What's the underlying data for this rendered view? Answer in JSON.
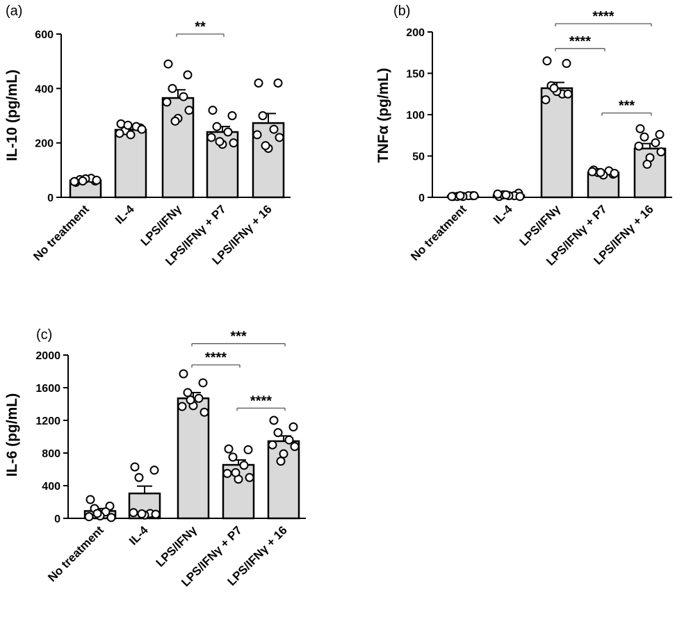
{
  "colors": {
    "bar_fill": "#d9d9d9",
    "bar_stroke": "#000000",
    "point_fill": "#ffffff",
    "point_stroke": "#000000",
    "bracket": "#555555"
  },
  "chart_data": [
    {
      "type": "bar",
      "panel_label": "(a)",
      "ylabel": "IL-10 (pg/mL)",
      "ylim": [
        0,
        600
      ],
      "yticks": [
        0,
        200,
        400,
        600
      ],
      "categories": [
        "No treatment",
        "IL-4",
        "LPS/IFNγ",
        "LPS/IFNγ + P7",
        "LPS/IFNγ + 16"
      ],
      "values": [
        62,
        248,
        365,
        240,
        273
      ],
      "sem": [
        5,
        12,
        30,
        20,
        35
      ],
      "points": [
        [
          55,
          60,
          65,
          70,
          58,
          63,
          68,
          60
        ],
        [
          270,
          255,
          245,
          260,
          235,
          250,
          230,
          265
        ],
        [
          490,
          450,
          400,
          370,
          350,
          320,
          290,
          280
        ],
        [
          320,
          300,
          260,
          240,
          220,
          200,
          195,
          205
        ],
        [
          420,
          420,
          300,
          250,
          230,
          220,
          180,
          190
        ]
      ],
      "significance": [
        {
          "from": 2,
          "to": 3,
          "label": "**",
          "y": 600
        }
      ]
    },
    {
      "type": "bar",
      "panel_label": "(b)",
      "ylabel": "TNFα (pg/mL)",
      "ylim": [
        0,
        200
      ],
      "yticks": [
        0,
        50,
        100,
        150,
        200
      ],
      "categories": [
        "No treatment",
        "IL-4",
        "LPS/IFNγ",
        "LPS/IFNγ + P7",
        "LPS/IFNγ + 16"
      ],
      "values": [
        1.5,
        2.5,
        132,
        30,
        59
      ],
      "sem": [
        0.5,
        1,
        7,
        2,
        6
      ],
      "points": [
        [
          1,
          2,
          1,
          2,
          1,
          2,
          1,
          2
        ],
        [
          1,
          5,
          3,
          2,
          4,
          1,
          2,
          3
        ],
        [
          165,
          162,
          135,
          125,
          118,
          125,
          128,
          132
        ],
        [
          33,
          28,
          30,
          32,
          31,
          29,
          27,
          30
        ],
        [
          83,
          76,
          73,
          66,
          62,
          55,
          48,
          40
        ]
      ],
      "significance": [
        {
          "from": 2,
          "to": 4,
          "label": "****",
          "y": 210
        },
        {
          "from": 2,
          "to": 3,
          "label": "****",
          "y": 180
        },
        {
          "from": 3,
          "to": 4,
          "label": "***",
          "y": 102
        }
      ]
    },
    {
      "type": "bar",
      "panel_label": "(c)",
      "ylabel": "IL-6 (pg/mL)",
      "ylim": [
        0,
        2000
      ],
      "yticks": [
        0,
        400,
        800,
        1200,
        1600,
        2000
      ],
      "categories": [
        "No treatment",
        "IL-4",
        "LPS/IFNγ",
        "LPS/IFNγ + P7",
        "LPS/IFNγ + 16"
      ],
      "values": [
        90,
        305,
        1470,
        655,
        945
      ],
      "sem": [
        30,
        90,
        70,
        60,
        65
      ],
      "points": [
        [
          230,
          150,
          120,
          80,
          20,
          10,
          30,
          60
        ],
        [
          630,
          590,
          500,
          60,
          70,
          50,
          40,
          55
        ],
        [
          1770,
          1660,
          1540,
          1470,
          1370,
          1300,
          1380,
          1450
        ],
        [
          850,
          840,
          750,
          650,
          550,
          500,
          480,
          560
        ],
        [
          1200,
          1120,
          1050,
          960,
          900,
          880,
          790,
          700
        ]
      ],
      "significance": [
        {
          "from": 2,
          "to": 4,
          "label": "***",
          "y": 2140
        },
        {
          "from": 2,
          "to": 3,
          "label": "****",
          "y": 1880
        },
        {
          "from": 3,
          "to": 4,
          "label": "****",
          "y": 1350
        }
      ]
    }
  ]
}
